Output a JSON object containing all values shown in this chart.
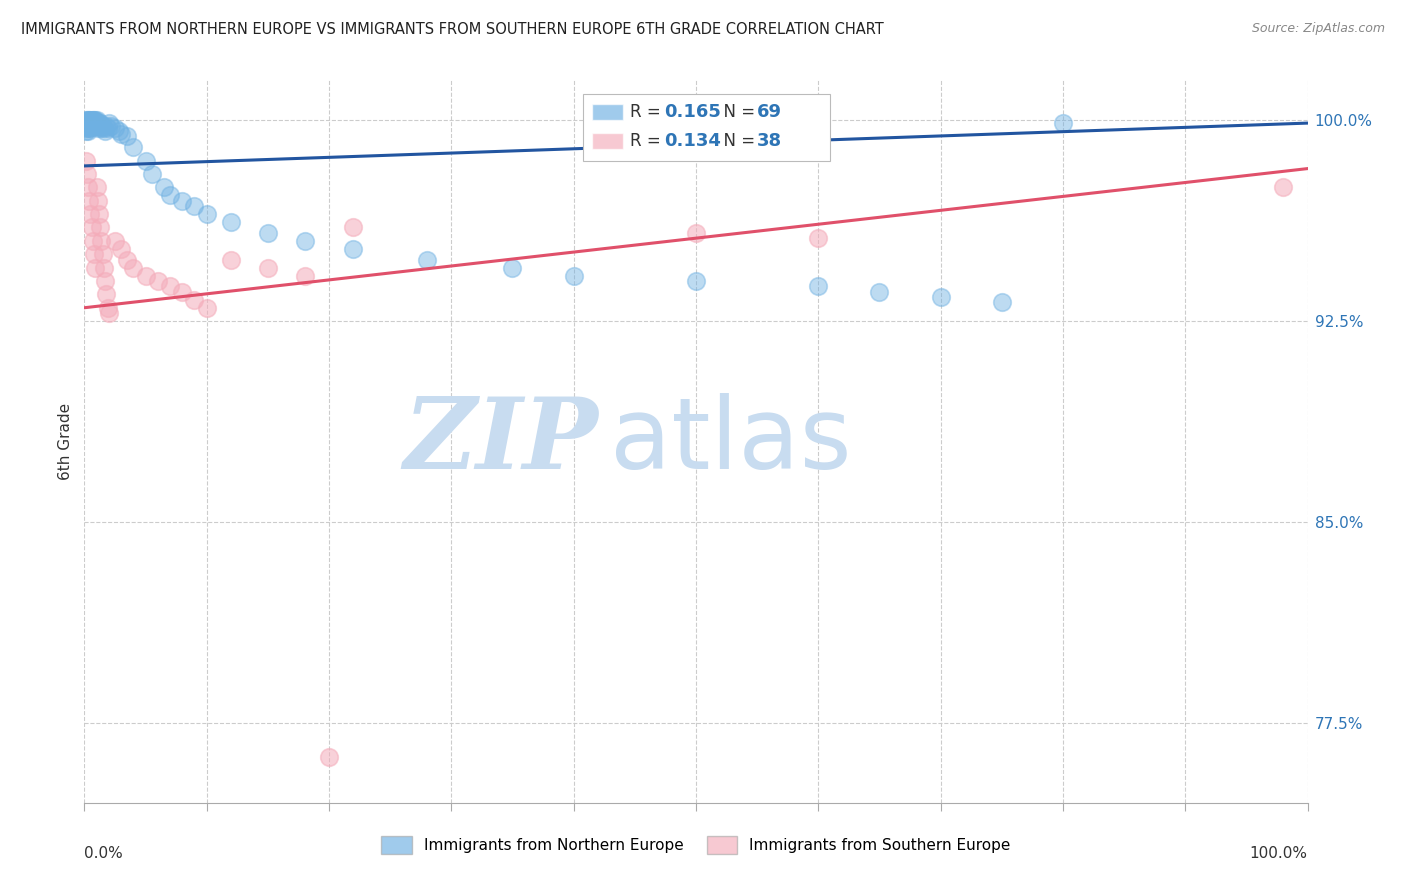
{
  "title": "IMMIGRANTS FROM NORTHERN EUROPE VS IMMIGRANTS FROM SOUTHERN EUROPE 6TH GRADE CORRELATION CHART",
  "source": "Source: ZipAtlas.com",
  "ylabel": "6th Grade",
  "ytick_labels": [
    "77.5%",
    "85.0%",
    "92.5%",
    "100.0%"
  ],
  "ytick_values": [
    0.775,
    0.85,
    0.925,
    1.0
  ],
  "legend_blue_label": "Immigrants from Northern Europe",
  "legend_pink_label": "Immigrants from Southern Europe",
  "R_blue": 0.165,
  "N_blue": 69,
  "R_pink": 0.134,
  "N_pink": 38,
  "blue_color": "#6EB0E2",
  "pink_color": "#F4ACBA",
  "line_blue_color": "#2255A0",
  "line_pink_color": "#E0506A",
  "watermark_zip": "ZIP",
  "watermark_atlas": "atlas",
  "watermark_color_zip": "#C8DCF0",
  "watermark_color_atlas": "#C8DCF0",
  "blue_trend_x0": 0.0,
  "blue_trend_x1": 1.0,
  "blue_trend_y0": 0.983,
  "blue_trend_y1": 0.999,
  "pink_trend_x0": 0.0,
  "pink_trend_x1": 1.0,
  "pink_trend_y0": 0.93,
  "pink_trend_y1": 0.982,
  "xmin": 0.0,
  "xmax": 1.0,
  "ymin": 0.745,
  "ymax": 1.015,
  "blue_x": [
    0.001,
    0.001,
    0.001,
    0.002,
    0.002,
    0.002,
    0.003,
    0.003,
    0.003,
    0.003,
    0.003,
    0.004,
    0.004,
    0.004,
    0.005,
    0.005,
    0.005,
    0.006,
    0.006,
    0.007,
    0.007,
    0.007,
    0.008,
    0.008,
    0.008,
    0.009,
    0.009,
    0.01,
    0.01,
    0.01,
    0.011,
    0.011,
    0.012,
    0.012,
    0.013,
    0.013,
    0.014,
    0.015,
    0.016,
    0.017,
    0.018,
    0.019,
    0.02,
    0.022,
    0.025,
    0.028,
    0.03,
    0.035,
    0.04,
    0.05,
    0.055,
    0.065,
    0.07,
    0.08,
    0.09,
    0.1,
    0.12,
    0.15,
    0.18,
    0.22,
    0.28,
    0.35,
    0.4,
    0.5,
    0.6,
    0.65,
    0.7,
    0.75,
    0.8
  ],
  "blue_y": [
    1.0,
    0.998,
    0.996,
    1.0,
    0.999,
    0.997,
    1.0,
    0.999,
    0.998,
    0.997,
    0.996,
    1.0,
    0.999,
    0.998,
    1.0,
    0.999,
    0.997,
    1.0,
    0.999,
    1.0,
    0.999,
    0.998,
    1.0,
    0.999,
    0.998,
    1.0,
    0.999,
    1.0,
    0.999,
    0.998,
    0.999,
    0.997,
    0.999,
    0.998,
    0.999,
    0.998,
    0.997,
    0.998,
    0.997,
    0.996,
    0.998,
    0.997,
    0.999,
    0.998,
    0.997,
    0.996,
    0.995,
    0.994,
    0.99,
    0.985,
    0.98,
    0.975,
    0.972,
    0.97,
    0.968,
    0.965,
    0.962,
    0.958,
    0.955,
    0.952,
    0.948,
    0.945,
    0.942,
    0.94,
    0.938,
    0.936,
    0.934,
    0.932,
    0.999
  ],
  "pink_x": [
    0.001,
    0.002,
    0.003,
    0.004,
    0.005,
    0.006,
    0.007,
    0.008,
    0.009,
    0.01,
    0.011,
    0.012,
    0.013,
    0.014,
    0.015,
    0.016,
    0.017,
    0.018,
    0.019,
    0.02,
    0.025,
    0.03,
    0.035,
    0.04,
    0.05,
    0.06,
    0.07,
    0.08,
    0.09,
    0.1,
    0.12,
    0.15,
    0.18,
    0.22,
    0.5,
    0.6,
    0.98,
    0.2
  ],
  "pink_y": [
    0.985,
    0.98,
    0.975,
    0.97,
    0.965,
    0.96,
    0.955,
    0.95,
    0.945,
    0.975,
    0.97,
    0.965,
    0.96,
    0.955,
    0.95,
    0.945,
    0.94,
    0.935,
    0.93,
    0.928,
    0.955,
    0.952,
    0.948,
    0.945,
    0.942,
    0.94,
    0.938,
    0.936,
    0.933,
    0.93,
    0.948,
    0.945,
    0.942,
    0.96,
    0.958,
    0.956,
    0.975,
    0.762
  ]
}
